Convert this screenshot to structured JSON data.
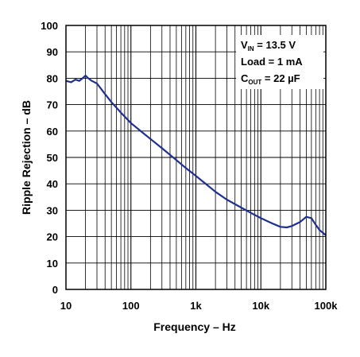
{
  "chart_data": {
    "type": "line",
    "title": "",
    "xlabel": "Frequency – Hz",
    "ylabel": "Ripple Rejection – dB",
    "x_scale": "log",
    "xlim": [
      10,
      100000
    ],
    "ylim": [
      0,
      100
    ],
    "grid": true,
    "x_ticks": [
      "10",
      "100",
      "1k",
      "10k",
      "100k"
    ],
    "y_ticks": [
      "0",
      "10",
      "20",
      "30",
      "40",
      "50",
      "60",
      "70",
      "80",
      "90",
      "100"
    ],
    "series": [
      {
        "color": "#1f2f8f",
        "x": [
          10,
          12,
          14,
          16,
          18,
          20,
          22,
          25,
          30,
          40,
          50,
          70,
          100,
          150,
          200,
          300,
          500,
          700,
          1000,
          1500,
          2000,
          3000,
          5000,
          7000,
          10000,
          15000,
          20000,
          25000,
          30000,
          40000,
          50000,
          60000,
          70000,
          80000,
          100000
        ],
        "y": [
          79,
          78.5,
          79.5,
          79,
          80,
          81,
          80,
          79,
          78,
          74,
          71,
          67,
          63,
          59.5,
          57,
          53.5,
          49,
          46,
          43,
          39.5,
          37,
          34,
          31,
          29,
          27,
          25,
          23.7,
          23.5,
          24,
          25.5,
          27.5,
          27,
          24.5,
          22.5,
          20.5
        ]
      }
    ],
    "annotations": {
      "vin_prefix": "V",
      "vin_sub": "IN",
      "vin_value": " = 13.5 V",
      "load": "Load = 1 mA",
      "cout_prefix": "C",
      "cout_sub": "OUT",
      "cout_value": " = 22 µF"
    }
  }
}
